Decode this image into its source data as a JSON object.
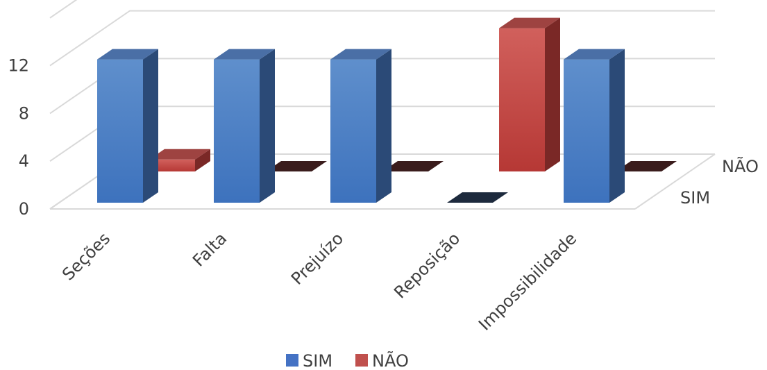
{
  "chart_data": {
    "type": "bar",
    "title": "",
    "xlabel": "",
    "ylabel": "",
    "categories": [
      "Seções",
      "Falta",
      "Prejuízo",
      "Reposição",
      "Impossibilidade"
    ],
    "series": [
      {
        "name": "SIM",
        "values": [
          12,
          12,
          12,
          0,
          12
        ],
        "color": "#4f81bd"
      },
      {
        "name": "NÃO",
        "values": [
          1,
          0,
          0,
          12,
          0
        ],
        "color": "#c0504d"
      }
    ],
    "ylim": [
      0,
      16
    ],
    "yticks": [
      "0",
      "4",
      "8",
      "12"
    ],
    "grid": true,
    "legend": "bottom",
    "style": "3d-clustered-depth"
  }
}
